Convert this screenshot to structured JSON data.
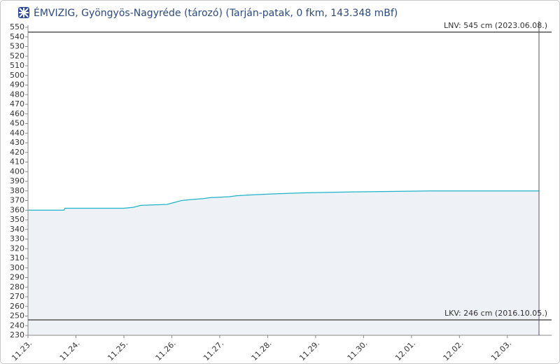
{
  "chart_data": {
    "type": "line",
    "title": "ÉMVIZIG, Gyöngyös-Nagyréde (tározó) (Tarján-patak, 0 fkm, 143.348 mBf)",
    "x": [
      0,
      0.75,
      0.77,
      2.0,
      2.2,
      2.35,
      2.9,
      3.05,
      3.2,
      3.4,
      3.65,
      3.8,
      4.2,
      4.35,
      4.7,
      5.15,
      5.75,
      6.8,
      8.4,
      10.66
    ],
    "series": [
      {
        "name": null,
        "color": "#1fb3c9",
        "values": [
          360,
          360,
          362,
          362,
          363,
          365,
          366,
          368,
          370,
          371,
          372,
          373,
          374,
          375,
          376,
          377,
          378,
          379,
          380,
          380
        ]
      }
    ],
    "area_color": "#eef1f6",
    "xlim": [
      0,
      10.66
    ],
    "xticks": [
      {
        "value": 0,
        "label": "11.23."
      },
      {
        "value": 1,
        "label": "11.24."
      },
      {
        "value": 2,
        "label": "11.25."
      },
      {
        "value": 3,
        "label": "11.26."
      },
      {
        "value": 4,
        "label": "11.27."
      },
      {
        "value": 5,
        "label": "11.28."
      },
      {
        "value": 6,
        "label": "11.29."
      },
      {
        "value": 7,
        "label": "11.30."
      },
      {
        "value": 8,
        "label": "12.01."
      },
      {
        "value": 9,
        "label": "12.02."
      },
      {
        "value": 10,
        "label": "12.03."
      }
    ],
    "ylim": [
      230,
      550
    ],
    "yticks": [
      230,
      240,
      250,
      260,
      270,
      280,
      290,
      300,
      310,
      320,
      330,
      340,
      350,
      360,
      370,
      380,
      390,
      400,
      410,
      420,
      430,
      440,
      450,
      460,
      470,
      480,
      490,
      500,
      510,
      520,
      530,
      540,
      550
    ],
    "thresholds": [
      {
        "value": 545,
        "label": "LNV: 545 cm (2023.06.08.)"
      },
      {
        "value": 246,
        "label": "LKV: 246 cm (2016.10.05.)"
      }
    ]
  }
}
